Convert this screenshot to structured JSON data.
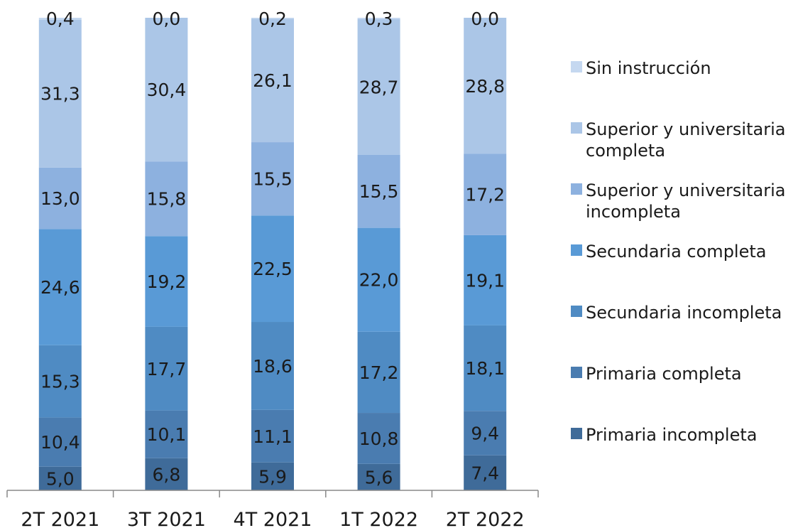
{
  "chart_data": {
    "type": "bar",
    "stacked": true,
    "categories": [
      "2T 2021",
      "3T 2021",
      "4T 2021",
      "1T 2022",
      "2T 2022"
    ],
    "series": [
      {
        "name": "Primaria incompleta",
        "color": "#3f6b99",
        "values": [
          5.0,
          6.8,
          5.9,
          5.6,
          7.4
        ],
        "labels": [
          "5,0",
          "6,8",
          "5,9",
          "5,6",
          "7,4"
        ]
      },
      {
        "name": "Primaria completa",
        "color": "#4a7cb0",
        "values": [
          10.4,
          10.1,
          11.1,
          10.8,
          9.4
        ],
        "labels": [
          "10,4",
          "10,1",
          "11,1",
          "10,8",
          "9,4"
        ]
      },
      {
        "name": "Secundaria incompleta",
        "color": "#4f8bc3",
        "values": [
          15.3,
          17.7,
          18.6,
          17.2,
          18.1
        ],
        "labels": [
          "15,3",
          "17,7",
          "18,6",
          "17,2",
          "18,1"
        ]
      },
      {
        "name": "Secundaria completa",
        "color": "#599ad6",
        "values": [
          24.6,
          19.2,
          22.5,
          22.0,
          19.1
        ],
        "labels": [
          "24,6",
          "19,2",
          "22,5",
          "22,0",
          "19,1"
        ]
      },
      {
        "name": "Superior y universitaria incompleta",
        "color": "#8db1df",
        "values": [
          13.0,
          15.8,
          15.5,
          15.5,
          17.2
        ],
        "labels": [
          "13,0",
          "15,8",
          "15,5",
          "15,5",
          "17,2"
        ]
      },
      {
        "name": "Superior y universitaria completa",
        "color": "#abc6e7",
        "values": [
          31.3,
          30.4,
          26.1,
          28.7,
          28.8
        ],
        "labels": [
          "31,3",
          "30,4",
          "26,1",
          "28,7",
          "28,8"
        ]
      },
      {
        "name": "Sin instrucción",
        "color": "#c5d8f0",
        "values": [
          0.4,
          0.0,
          0.2,
          0.3,
          0.0
        ],
        "labels": [
          "0,4",
          "0,0",
          "0,2",
          "0,3",
          "0,0"
        ]
      }
    ],
    "legend": {
      "position": "right",
      "entries": [
        {
          "color": "#c5d8f0",
          "lines": [
            "Sin instrucción"
          ]
        },
        {
          "color": "#abc6e7",
          "lines": [
            "Superior y universitaria",
            "completa"
          ]
        },
        {
          "color": "#8db1df",
          "lines": [
            "Superior y universitaria",
            "incompleta"
          ]
        },
        {
          "color": "#599ad6",
          "lines": [
            "Secundaria completa"
          ]
        },
        {
          "color": "#4f8bc3",
          "lines": [
            "Secundaria incompleta"
          ]
        },
        {
          "color": "#4a7cb0",
          "lines": [
            "Primaria completa"
          ]
        },
        {
          "color": "#3f6b99",
          "lines": [
            "Primaria incompleta"
          ]
        }
      ]
    },
    "ylim": [
      0,
      100
    ],
    "grid": false
  }
}
